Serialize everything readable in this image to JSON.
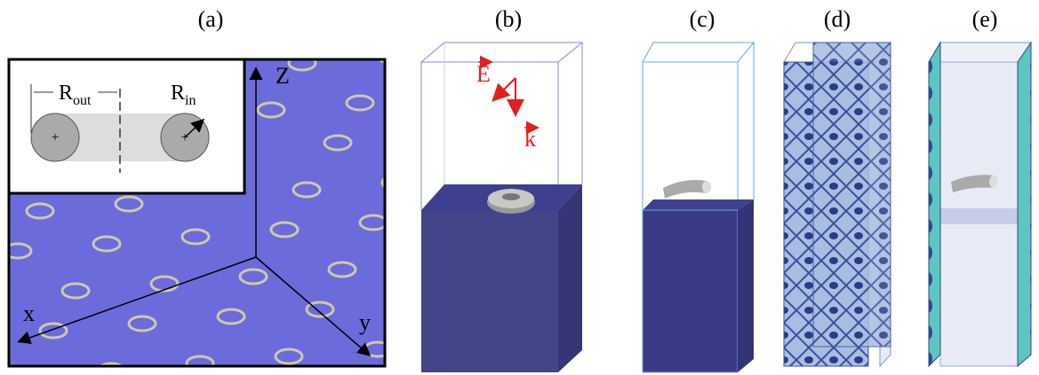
{
  "panels": [
    "(a)",
    "(b)",
    "(c)",
    "(d)",
    "(e)"
  ],
  "panel_a": {
    "axes": {
      "z": "Z",
      "x": "x",
      "y": "y"
    },
    "inset": {
      "r_out": {
        "main": "R",
        "sub": "out"
      },
      "r_in": {
        "main": "R",
        "sub": "in"
      },
      "center_mark": "+"
    }
  },
  "panel_b": {
    "field": "E",
    "wave": "k"
  }
}
